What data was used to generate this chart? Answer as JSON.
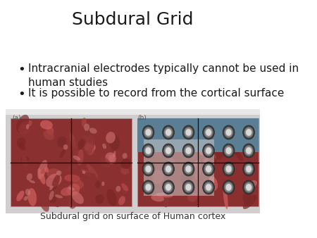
{
  "title": "Subdural Grid",
  "bullet1": "Intracranial electrodes typically cannot be used in\nhuman studies",
  "bullet2": "It is possible to record from the cortical surface",
  "caption": "Subdural grid on surface of Human cortex",
  "label_a": "(a)",
  "label_b": "(b)",
  "background_color": "#ffffff",
  "outer_box_color": "#d8d8d8",
  "title_fontsize": 18,
  "bullet_fontsize": 11,
  "caption_fontsize": 9,
  "title_color": "#1a1a1a",
  "text_color": "#1a1a1a",
  "caption_color": "#333333"
}
